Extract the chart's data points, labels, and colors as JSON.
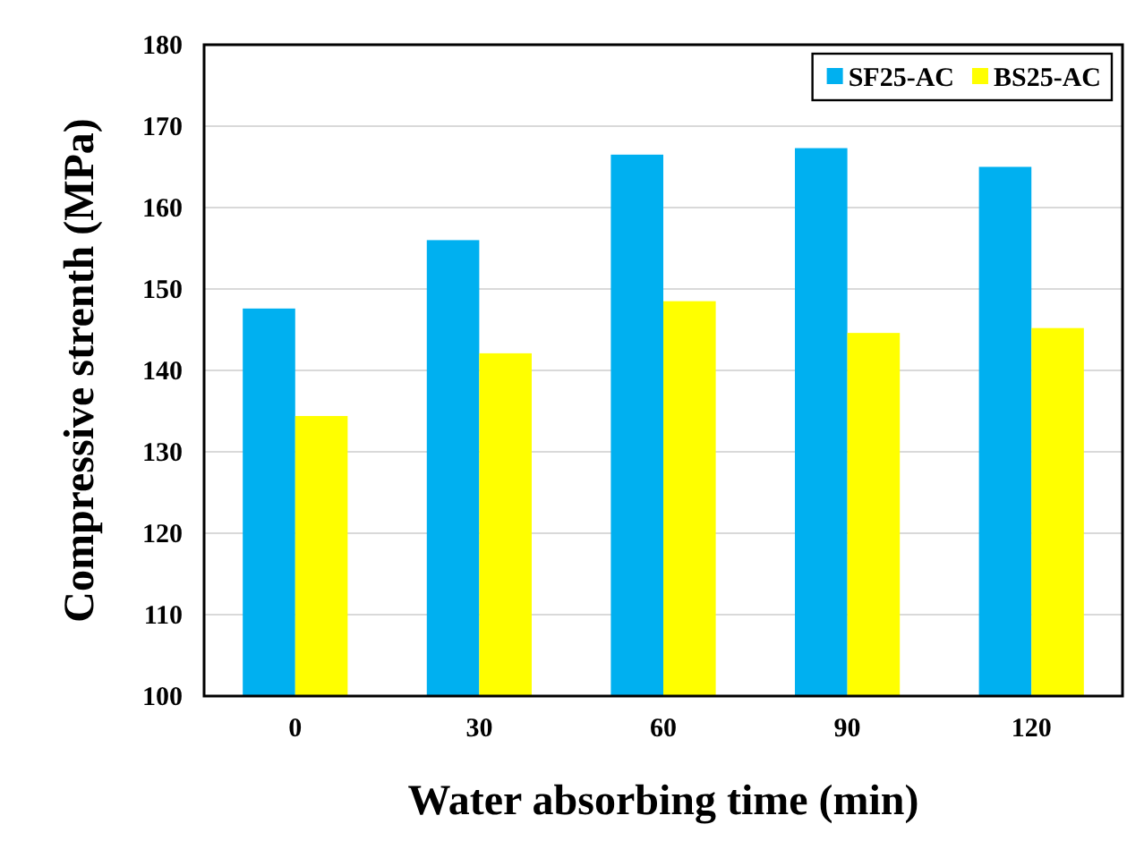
{
  "chart_data": {
    "type": "bar",
    "xlabel": "Water absorbing time (min)",
    "ylabel": "Compressive strenth (MPa)",
    "categories": [
      "0",
      "30",
      "60",
      "90",
      "120"
    ],
    "series": [
      {
        "name": "SF25-AC",
        "color": "#00b0f0",
        "values": [
          147.6,
          156.0,
          166.5,
          167.3,
          165.0
        ]
      },
      {
        "name": "BS25-AC",
        "color": "#ffff00",
        "values": [
          134.4,
          142.1,
          148.5,
          144.6,
          145.2
        ]
      }
    ],
    "ylim": [
      100,
      180
    ],
    "yticks": [
      100,
      110,
      120,
      130,
      140,
      150,
      160,
      170,
      180
    ],
    "grid": "y",
    "legend": "top right"
  }
}
